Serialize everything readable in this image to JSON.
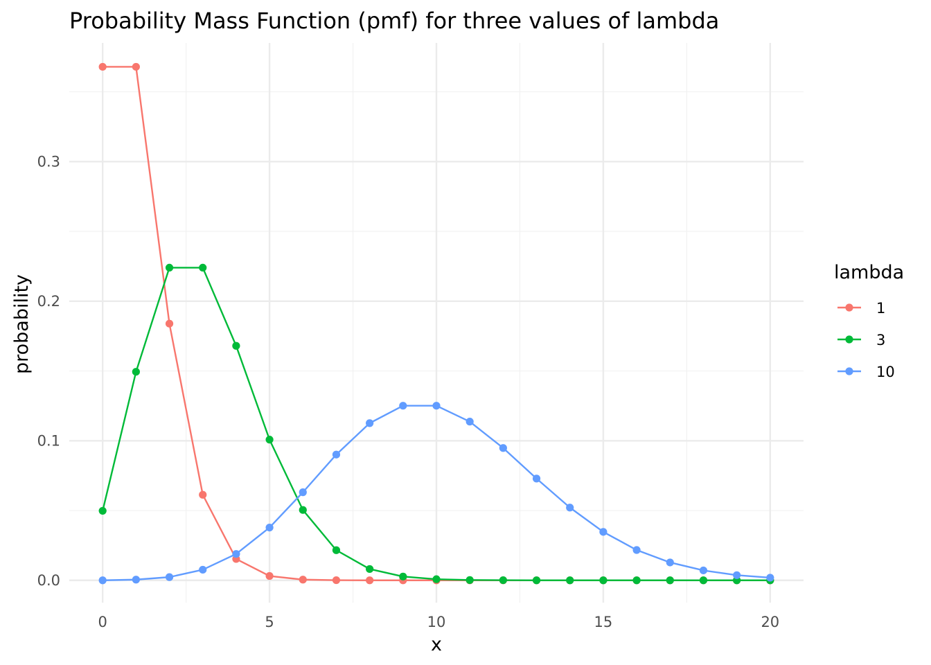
{
  "chart_data": {
    "type": "line",
    "title": "Probability Mass Function (pmf) for three values of lambda",
    "xlabel": "x",
    "ylabel": "probability",
    "xlim": [
      -1,
      21
    ],
    "ylim": [
      -0.016,
      0.385
    ],
    "xticks": [
      0,
      5,
      10,
      15,
      20
    ],
    "xtick_labels": [
      "0",
      "5",
      "10",
      "15",
      "20"
    ],
    "yticks": [
      0.0,
      0.1,
      0.2,
      0.3
    ],
    "ytick_labels": [
      "0.0",
      "0.1",
      "0.2",
      "0.3"
    ],
    "grid": true,
    "legend": {
      "title": "lambda",
      "position": "right"
    },
    "x": [
      0,
      1,
      2,
      3,
      4,
      5,
      6,
      7,
      8,
      9,
      10,
      11,
      12,
      13,
      14,
      15,
      16,
      17,
      18,
      19,
      20
    ],
    "series": [
      {
        "name": "1",
        "color": "#F8766D",
        "values": [
          0.3679,
          0.3679,
          0.1839,
          0.0613,
          0.0153,
          0.0031,
          0.0005,
          0.0001,
          0.0,
          0.0,
          0.0,
          0.0,
          0.0,
          0.0,
          0.0,
          0.0,
          0.0,
          0.0,
          0.0,
          0.0,
          0.0
        ]
      },
      {
        "name": "3",
        "color": "#00BA38",
        "values": [
          0.0498,
          0.1494,
          0.224,
          0.224,
          0.168,
          0.1008,
          0.0504,
          0.0216,
          0.0081,
          0.0027,
          0.0008,
          0.0002,
          0.0001,
          0.0,
          0.0,
          0.0,
          0.0,
          0.0,
          0.0,
          0.0,
          0.0
        ]
      },
      {
        "name": "10",
        "color": "#619CFF",
        "values": [
          0.0,
          0.0005,
          0.0023,
          0.0076,
          0.0189,
          0.0378,
          0.0631,
          0.0901,
          0.1126,
          0.1251,
          0.1251,
          0.1137,
          0.0948,
          0.0729,
          0.0521,
          0.0347,
          0.0217,
          0.0128,
          0.0071,
          0.0037,
          0.0019
        ]
      }
    ]
  }
}
